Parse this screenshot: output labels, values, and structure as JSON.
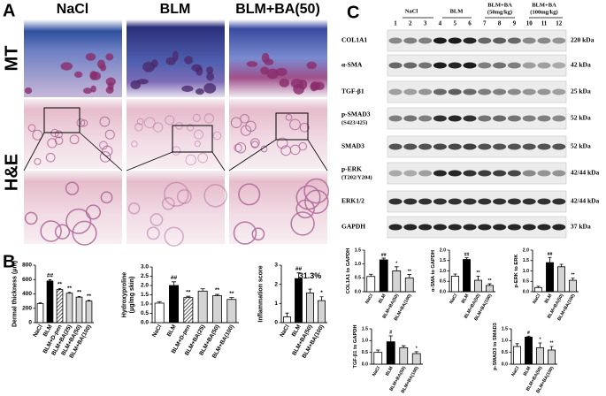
{
  "panel_labels": [
    "A",
    "B",
    "C"
  ],
  "histology": {
    "columns": [
      "NaCl",
      "BLM",
      "BLM+BA(50)"
    ],
    "rows": [
      "MT",
      "H&E"
    ]
  },
  "blot": {
    "groups": [
      {
        "lines": [
          "NaCl"
        ]
      },
      {
        "lines": [
          "BLM"
        ]
      },
      {
        "lines": [
          "BLM+BA",
          "(50mg/kg)"
        ]
      },
      {
        "lines": [
          "BLM+BA",
          "(100mg/kg)"
        ]
      }
    ],
    "lanes": [
      1,
      2,
      3,
      4,
      5,
      6,
      7,
      8,
      9,
      10,
      11,
      12
    ],
    "rows": [
      {
        "label": "COL1A1",
        "kda": "220 kDa"
      },
      {
        "label": "α-SMA",
        "kda": "42 kDa"
      },
      {
        "label": "TGF-β1",
        "kda": "25 kDa"
      },
      {
        "label": "p-SMAD3",
        "site": "(S423/425)",
        "kda": "52 kDa"
      },
      {
        "label": "SMAD3",
        "kda": "52 kDa"
      },
      {
        "label": "p-ERK",
        "site": "(T202/Y204)",
        "kda": "42/44 kDa"
      },
      {
        "label": "ERK1/2",
        "kda": "42/44 kDa"
      },
      {
        "label": "GAPDH",
        "kda": "37 kDa"
      }
    ]
  },
  "chart_data": [
    {
      "type": "bar",
      "ylabel": [
        "Dermal thickness (μm)"
      ],
      "categories": [
        "NaCl",
        "BLM",
        "BLM+D-pen",
        "BLM+BA(25)",
        "BLM+BA(50)",
        "BLM+BA(100)"
      ],
      "values": [
        265,
        580,
        460,
        410,
        355,
        300
      ],
      "errors": [
        10,
        18,
        15,
        12,
        10,
        10
      ],
      "sig": [
        null,
        "##",
        "**",
        "**",
        "**",
        "**"
      ],
      "colors": [
        "#ffffff",
        "#000000",
        "#ffffff",
        "#d4d4d4",
        "#d4d4d4",
        "#d4d4d4"
      ],
      "hatch": [
        2
      ],
      "ylim": [
        0,
        800
      ],
      "yticks": [
        0,
        200,
        400,
        600,
        800
      ]
    },
    {
      "type": "bar",
      "ylabel": [
        "Hydroxyproline",
        "(μg/mg skin)"
      ],
      "categories": [
        "NaCl",
        "BLM",
        "BLM+D-pen",
        "BLM+BA(25)",
        "BLM+BA(50)",
        "BLM+BA(100)"
      ],
      "values": [
        1.05,
        2.0,
        1.35,
        1.7,
        1.45,
        1.25
      ],
      "errors": [
        0.08,
        0.2,
        0.07,
        0.12,
        0.07,
        0.1
      ],
      "sig": [
        null,
        "##",
        "**",
        null,
        "**",
        "**"
      ],
      "colors": [
        "#ffffff",
        "#000000",
        "#ffffff",
        "#d4d4d4",
        "#d4d4d4",
        "#d4d4d4"
      ],
      "hatch": [
        2
      ],
      "ylim": [
        0,
        3
      ],
      "yticks": [
        {
          "value": 0,
          "label": "0.0"
        },
        {
          "value": 0.5,
          "label": "0.5"
        },
        {
          "value": 1,
          "label": "1.0"
        },
        {
          "value": 1.5,
          "label": "1.5"
        },
        {
          "value": 2,
          "label": "2.0"
        },
        {
          "value": 2.5,
          "label": "2.5"
        },
        {
          "value": 3,
          "label": "3.0"
        }
      ]
    },
    {
      "type": "bar",
      "ylabel": [
        "Inflammation score"
      ],
      "categories": [
        "NaCl",
        "BLM",
        "BLM+BA(50)",
        "BLM+BA(100)"
      ],
      "values": [
        0.3,
        2.3,
        1.55,
        1.15
      ],
      "errors": [
        0.2,
        0.3,
        0.2,
        0.2
      ],
      "sig": [
        null,
        "##",
        null,
        "*"
      ],
      "annotation": "31.3%",
      "colors": [
        "#ffffff",
        "#000000",
        "#d4d4d4",
        "#d4d4d4"
      ],
      "hatch": [],
      "ylim": [
        0,
        3
      ],
      "yticks": [
        0,
        1,
        2,
        3
      ]
    },
    {
      "type": "bar",
      "ylabel": [
        "COL1A1 to GAPDH"
      ],
      "categories": [
        "NaCl",
        "BLM",
        "BLM+BA(50)",
        "BLM+BA(100)"
      ],
      "values": [
        0.55,
        1.15,
        0.75,
        0.5
      ],
      "errors": [
        0.08,
        0.06,
        0.15,
        0.12
      ],
      "sig": [
        null,
        "##",
        "*",
        "**"
      ],
      "colors": [
        "#ffffff",
        "#000000",
        "#d4d4d4",
        "#d4d4d4"
      ],
      "hatch": [],
      "ylim": [
        0,
        1.5
      ],
      "yticks": [
        {
          "value": 0,
          "label": "0.0"
        },
        {
          "value": 0.5,
          "label": "0.5"
        },
        {
          "value": 1,
          "label": "1.0"
        },
        {
          "value": 1.5,
          "label": "1.5"
        }
      ]
    },
    {
      "type": "bar",
      "ylabel": [
        "α-SMA to GAPDH"
      ],
      "categories": [
        "NaCl",
        "BLM",
        "BLM+BA(50)",
        "BLM+BA(100)"
      ],
      "values": [
        0.75,
        1.55,
        0.55,
        0.3
      ],
      "errors": [
        0.1,
        0.08,
        0.2,
        0.08
      ],
      "sig": [
        null,
        "##",
        "**",
        "**"
      ],
      "colors": [
        "#ffffff",
        "#000000",
        "#d4d4d4",
        "#d4d4d4"
      ],
      "hatch": [],
      "ylim": [
        0,
        2
      ],
      "yticks": [
        {
          "value": 0,
          "label": "0.0"
        },
        {
          "value": 0.5,
          "label": "0.5"
        },
        {
          "value": 1,
          "label": "1.0"
        },
        {
          "value": 1.5,
          "label": "1.5"
        },
        {
          "value": 2,
          "label": "2.0"
        }
      ]
    },
    {
      "type": "bar",
      "ylabel": [
        "p-ERK to ERK"
      ],
      "categories": [
        "NaCl",
        "BLM",
        "BLM+BA(50)",
        "BLM+BA(100)"
      ],
      "values": [
        0.2,
        1.4,
        1.2,
        0.55
      ],
      "errors": [
        0.06,
        0.25,
        0.12,
        0.1
      ],
      "sig": [
        null,
        "##",
        null,
        "**"
      ],
      "colors": [
        "#ffffff",
        "#000000",
        "#d4d4d4",
        "#d4d4d4"
      ],
      "hatch": [],
      "ylim": [
        0,
        2
      ],
      "yticks": [
        {
          "value": 0,
          "label": "0.0"
        },
        {
          "value": 0.5,
          "label": "0.5"
        },
        {
          "value": 1,
          "label": "1.0"
        },
        {
          "value": 1.5,
          "label": "1.5"
        },
        {
          "value": 2,
          "label": "2.0"
        }
      ]
    },
    {
      "type": "bar",
      "ylabel": [
        "TGF-β1 to GAPDH"
      ],
      "categories": [
        "NaCl",
        "BLM",
        "BLM+BA(50)",
        "BLM+BA(100)"
      ],
      "values": [
        0.5,
        0.95,
        0.7,
        0.45
      ],
      "errors": [
        0.1,
        0.25,
        0.08,
        0.08
      ],
      "sig": [
        null,
        "#",
        null,
        "*"
      ],
      "colors": [
        "#ffffff",
        "#000000",
        "#d4d4d4",
        "#d4d4d4"
      ],
      "hatch": [],
      "ylim": [
        0,
        1.5
      ],
      "yticks": [
        {
          "value": 0,
          "label": "0.0"
        },
        {
          "value": 0.5,
          "label": "0.5"
        },
        {
          "value": 1,
          "label": "1.0"
        },
        {
          "value": 1.5,
          "label": "1.5"
        }
      ]
    },
    {
      "type": "bar",
      "ylabel": [
        "p-SMAD3 to SMAD3"
      ],
      "categories": [
        "NaCl",
        "BLM",
        "BLM+BA(50)",
        "BLM+BA(100)"
      ],
      "values": [
        0.75,
        1.15,
        0.7,
        0.6
      ],
      "errors": [
        0.12,
        0.04,
        0.2,
        0.15
      ],
      "sig": [
        null,
        "#",
        "*",
        "**"
      ],
      "colors": [
        "#ffffff",
        "#000000",
        "#d4d4d4",
        "#d4d4d4"
      ],
      "hatch": [],
      "ylim": [
        0,
        1.5
      ],
      "yticks": [
        {
          "value": 0,
          "label": "0.0"
        },
        {
          "value": 0.5,
          "label": "0.5"
        },
        {
          "value": 1,
          "label": "1.0"
        },
        {
          "value": 1.5,
          "label": "1.5"
        }
      ]
    }
  ]
}
